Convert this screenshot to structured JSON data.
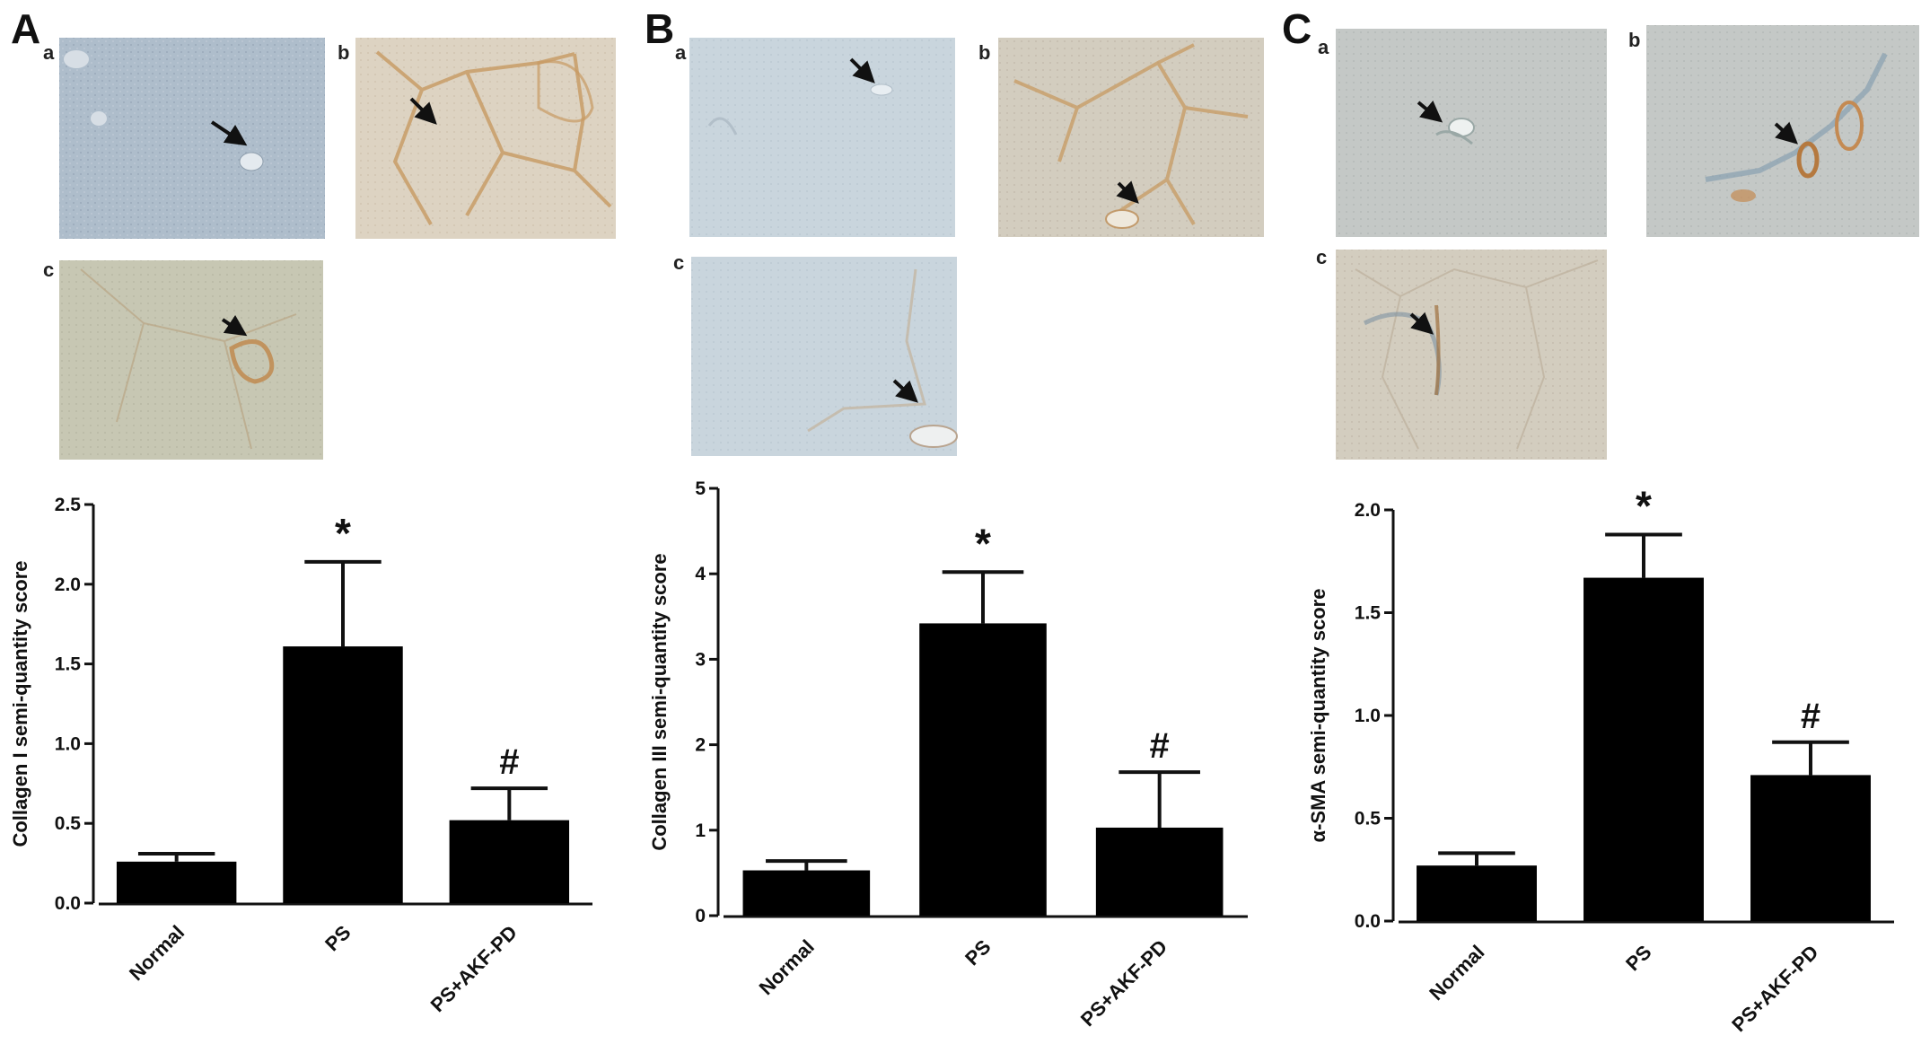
{
  "panels": [
    {
      "letter": "A",
      "image_labels": [
        "a",
        "b",
        "c"
      ]
    },
    {
      "letter": "B",
      "image_labels": [
        "a",
        "b",
        "c"
      ]
    },
    {
      "letter": "C",
      "image_labels": [
        "a",
        "b",
        "c"
      ]
    }
  ],
  "chart_data": [
    {
      "type": "bar",
      "categories": [
        "Normal",
        "PS",
        "PS+AKF-PD"
      ],
      "values": [
        0.26,
        1.61,
        0.52
      ],
      "errors": [
        0.05,
        0.53,
        0.2
      ],
      "annotations": [
        "",
        "*",
        "#"
      ],
      "ylabel": "Collagen I semi-quantity score",
      "ylim": [
        0,
        2.5
      ],
      "yticks": [
        "0.0",
        "0.5",
        "1.0",
        "1.5",
        "2.0",
        "2.5"
      ],
      "color": "#000000"
    },
    {
      "type": "bar",
      "categories": [
        "Normal",
        "PS",
        "PS+AKF-PD"
      ],
      "values": [
        0.53,
        3.42,
        1.03
      ],
      "errors": [
        0.11,
        0.6,
        0.65
      ],
      "annotations": [
        "",
        "*",
        "#"
      ],
      "ylabel": "Collagen III semi-quantity score",
      "ylim": [
        0,
        5
      ],
      "yticks": [
        "0",
        "1",
        "2",
        "3",
        "4",
        "5"
      ],
      "color": "#000000"
    },
    {
      "type": "bar",
      "categories": [
        "Normal",
        "PS",
        "PS+AKF-PD"
      ],
      "values": [
        0.27,
        1.67,
        0.71
      ],
      "errors": [
        0.06,
        0.21,
        0.16
      ],
      "annotations": [
        "",
        "*",
        "#"
      ],
      "ylabel": "α-SMA semi-quantity score",
      "ylim": [
        0,
        2.0
      ],
      "yticks": [
        "0.0",
        "0.5",
        "1.0",
        "1.5",
        "2.0"
      ],
      "color": "#000000"
    }
  ]
}
